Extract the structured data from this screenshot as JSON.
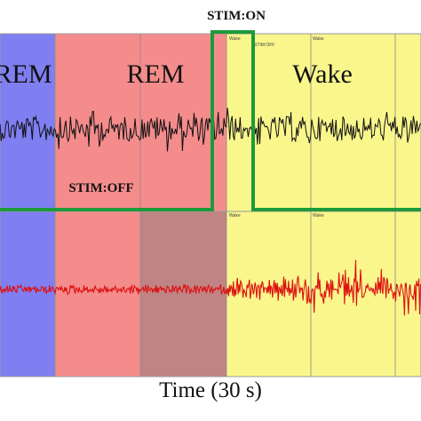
{
  "top_label": "STIM:ON",
  "off_label": "STIM:OFF",
  "x_axis_label": "Time (30 s)",
  "panel_marker_text": "Wake",
  "panel_marker_off": "STIM:OFF",
  "stages": [
    {
      "name": "REM",
      "color": "#7f7ff2",
      "x0": 0,
      "x1": 62
    },
    {
      "name": "REM",
      "color": "#f58c8c",
      "x0": 62,
      "x1": 158
    },
    {
      "name": "",
      "color": "#c08484",
      "x0": 158,
      "x1": 255
    },
    {
      "name": "Wake",
      "color": "#f9f68c",
      "x0": 255,
      "x1": 474
    }
  ],
  "stage_labels": [
    "REM",
    "REM",
    "Wake"
  ],
  "colors": {
    "green": "#1e9a3a",
    "eeg_trace": "#111111",
    "emg_trace": "#dd1111",
    "epoch_line": "#8a8a8a"
  }
}
